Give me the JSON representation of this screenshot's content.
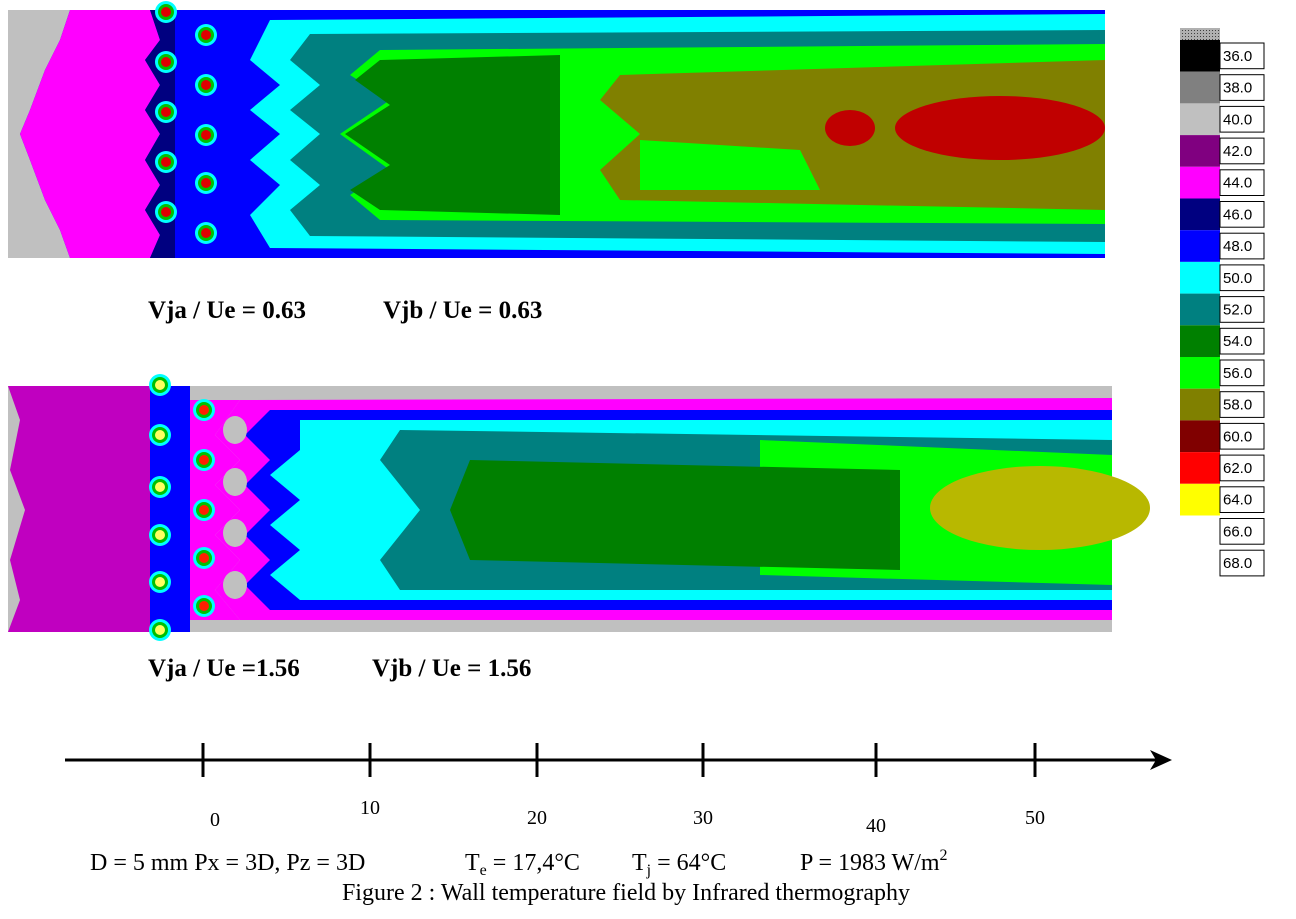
{
  "figure": {
    "panels": [
      {
        "label_a": "Vja / Ue = 0.63",
        "label_b": "Vjb / Ue = 0.63"
      },
      {
        "label_a": "Vja / Ue =1.56",
        "label_b": "Vjb / Ue = 1.56"
      }
    ],
    "legend": [
      {
        "label": "36.0",
        "color": "#000000"
      },
      {
        "label": "38.0",
        "color": "#808080"
      },
      {
        "label": "40.0",
        "color": "#c0c0c0"
      },
      {
        "label": "42.0",
        "color": "#800080"
      },
      {
        "label": "44.0",
        "color": "#ff00ff"
      },
      {
        "label": "46.0",
        "color": "#000080"
      },
      {
        "label": "48.0",
        "color": "#0000ff"
      },
      {
        "label": "50.0",
        "color": "#00ffff"
      },
      {
        "label": "52.0",
        "color": "#008080"
      },
      {
        "label": "54.0",
        "color": "#008000"
      },
      {
        "label": "56.0",
        "color": "#00ff00"
      },
      {
        "label": "58.0",
        "color": "#808000"
      },
      {
        "label": "60.0",
        "color": "#800000"
      },
      {
        "label": "62.0",
        "color": "#ff0000"
      },
      {
        "label": "64.0",
        "color": "#ffff00"
      },
      {
        "label": "66.0",
        "color": "#ffffff"
      },
      {
        "label": "68.0",
        "color": "#ffffff"
      }
    ],
    "axis_ticks": [
      "0",
      "10",
      "20",
      "30",
      "40",
      "50"
    ],
    "parameters": {
      "geometry": "D = 5 mm Px = 3D, Pz = 3D",
      "te": {
        "symbol": "T",
        "sub": "e",
        "value": " = 17,4°C"
      },
      "tj": {
        "symbol": "T",
        "sub": "j",
        "value": " = 64°C"
      },
      "power": {
        "text": "P = 1983 W/m",
        "sup": "2"
      }
    },
    "caption": "Figure 2 : Wall temperature field by Infrared thermography"
  }
}
